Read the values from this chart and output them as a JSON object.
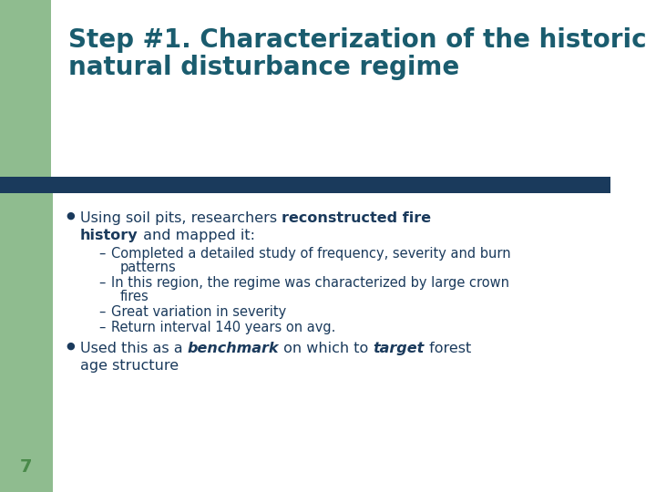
{
  "title_line1": "Step #1. Characterization of the historic",
  "title_line2": "natural disturbance regime",
  "title_color": "#1a5c6e",
  "title_fontsize": 20,
  "bg_color": "#ffffff",
  "left_bar_color": "#8fbc8f",
  "top_green_color": "#8fbc8f",
  "header_bar_color": "#1a3a5c",
  "slide_number": "7",
  "slide_number_color": "#4a8a4a",
  "bullet_color": "#1a3a5c",
  "sub_fs": 10.5,
  "body_fs": 11.5
}
